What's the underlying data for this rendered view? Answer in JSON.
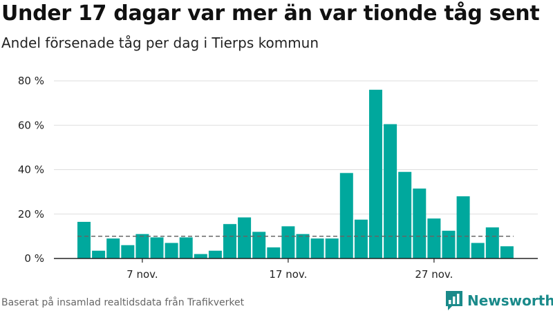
{
  "title": "Under 17 dagar var mer än var tionde tåg sent",
  "subtitle": "Andel försenade tåg per dag i Tierps kommun",
  "source": "Baserat på insamlad realtidsdata från Trafikverket",
  "brand": {
    "name": "Newsworthy",
    "icon": "bar-chart-speech-bubble-icon"
  },
  "colors": {
    "bar": "#00a89d",
    "reference_line": "#666666",
    "grid": "#dddddd",
    "axis": "#222222",
    "brand": "#1a8a8a"
  },
  "chart_data": {
    "type": "bar",
    "title": "Under 17 dagar var mer än var tionde tåg sent",
    "subtitle": "Andel försenade tåg per dag i Tierps kommun",
    "xlabel": "",
    "ylabel": "",
    "x": [
      "2019-11-03",
      "2019-11-04",
      "2019-11-05",
      "2019-11-06",
      "2019-11-07",
      "2019-11-08",
      "2019-11-09",
      "2019-11-10",
      "2019-11-11",
      "2019-11-12",
      "2019-11-13",
      "2019-11-14",
      "2019-11-15",
      "2019-11-16",
      "2019-11-17",
      "2019-11-18",
      "2019-11-19",
      "2019-11-20",
      "2019-11-21",
      "2019-11-22",
      "2019-11-23",
      "2019-11-24",
      "2019-11-25",
      "2019-11-26",
      "2019-11-27",
      "2019-11-28",
      "2019-11-29",
      "2019-11-30",
      "2019-12-01",
      "2019-12-02",
      "2019-12-03"
    ],
    "values": [
      16.5,
      3.5,
      9,
      6,
      11,
      9.5,
      7,
      9.5,
      2,
      3.5,
      15.5,
      18.5,
      12,
      5,
      14.5,
      11,
      9,
      9,
      38.5,
      17.5,
      76,
      60.5,
      39,
      31.5,
      18,
      12.5,
      28,
      7,
      14,
      5.5,
      0
    ],
    "reference_line": {
      "value": 10,
      "style": "dashed"
    },
    "ylim": [
      0,
      80
    ],
    "yticks": [
      0,
      20,
      40,
      60,
      80
    ],
    "ytick_labels": [
      "0 %",
      "20 %",
      "40 %",
      "60 %",
      "80 %"
    ],
    "xticks": [
      {
        "date": "2019-11-07",
        "label": "7 nov."
      },
      {
        "date": "2019-11-17",
        "label": "17 nov."
      },
      {
        "date": "2019-11-27",
        "label": "27 nov."
      }
    ],
    "grid": true,
    "legend": "none"
  }
}
